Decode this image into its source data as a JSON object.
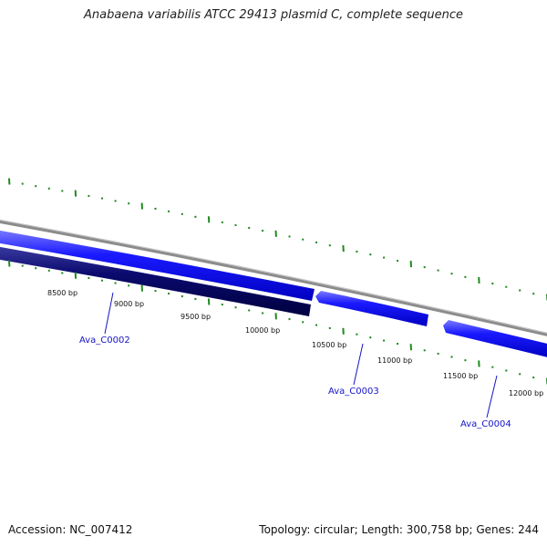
{
  "title": "Anabaena variabilis ATCC 29413 plasmid C, complete sequence",
  "footer": {
    "accession": "Accession: NC_007412",
    "summary": "Topology: circular; Length: 300,758 bp; Genes: 244"
  },
  "colors": {
    "backbone": "#8c8c8c",
    "gene_forward": "#1a1aff",
    "gene_reverse": "#0a0a6e",
    "ticks": "#1f8a1f",
    "gene_label": "#1414c8"
  },
  "bp_labels": [
    "8500 bp",
    "9000 bp",
    "9500 bp",
    "10000 bp",
    "10500 bp",
    "11000 bp",
    "11500 bp",
    "12000 bp"
  ],
  "genes": [
    {
      "name": "Ava_C0002"
    },
    {
      "name": "Ava_C0003"
    },
    {
      "name": "Ava_C0004"
    }
  ]
}
